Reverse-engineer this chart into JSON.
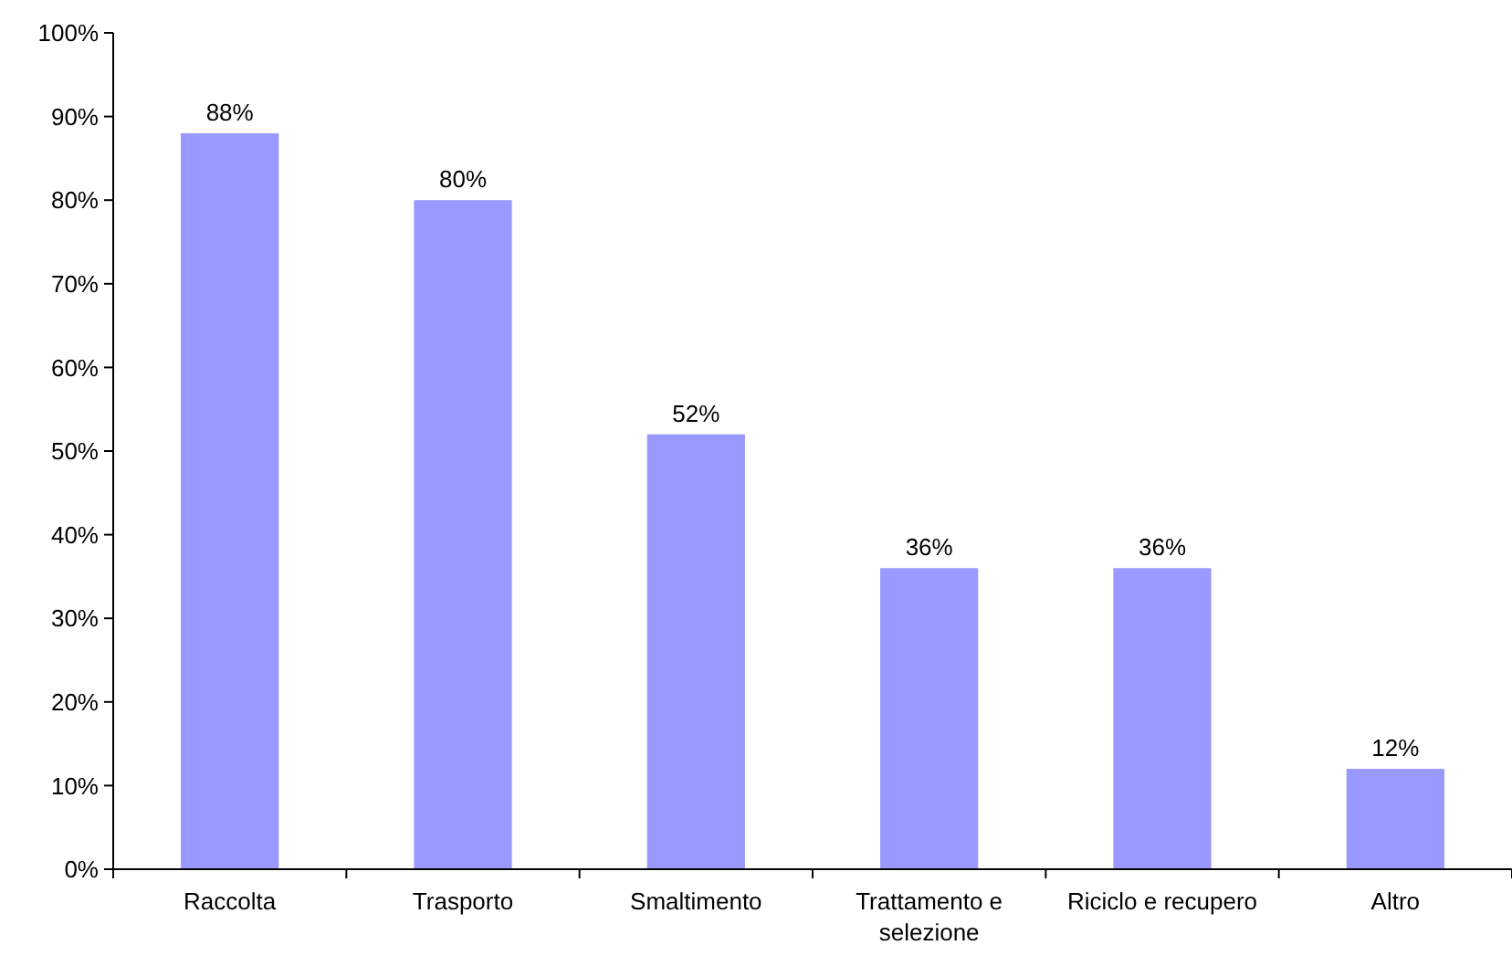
{
  "chart_data": {
    "type": "bar",
    "categories": [
      "Raccolta",
      "Trasporto",
      "Smaltimento",
      "Trattamento e selezione",
      "Riciclo e recupero",
      "Altro"
    ],
    "values": [
      88,
      80,
      52,
      36,
      36,
      12
    ],
    "value_labels": [
      "88%",
      "80%",
      "52%",
      "36%",
      "36%",
      "12%"
    ],
    "color": "#9999ff",
    "ylim": [
      0,
      100
    ],
    "yticks": [
      {
        "value": 0,
        "label": "0%"
      },
      {
        "value": 10,
        "label": "10%"
      },
      {
        "value": 20,
        "label": "20%"
      },
      {
        "value": 30,
        "label": "30%"
      },
      {
        "value": 40,
        "label": "40%"
      },
      {
        "value": 50,
        "label": "50%"
      },
      {
        "value": 60,
        "label": "60%"
      },
      {
        "value": 70,
        "label": "70%"
      },
      {
        "value": 80,
        "label": "80%"
      },
      {
        "value": 90,
        "label": "90%"
      },
      {
        "value": 100,
        "label": "100%"
      }
    ],
    "grid": false
  }
}
